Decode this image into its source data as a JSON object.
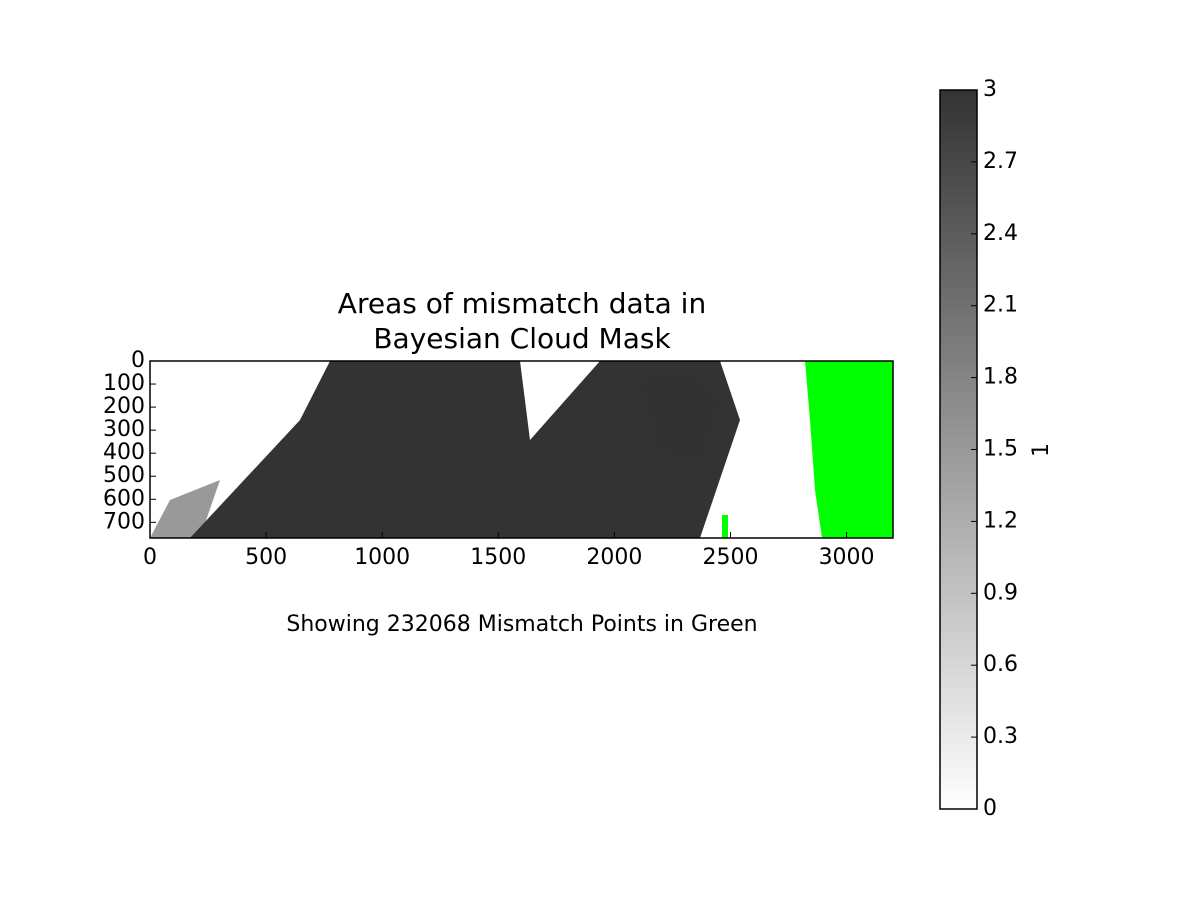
{
  "chart_data": {
    "type": "image",
    "title": [
      "Areas of mismatch data in",
      "Bayesian Cloud Mask"
    ],
    "annotation": "Showing 232068 Mismatch Points in Green",
    "xlim": [
      0,
      3200
    ],
    "xticks": [
      0,
      500,
      1000,
      1500,
      2000,
      2500,
      3000
    ],
    "ylim": [
      768,
      0
    ],
    "yticks": [
      0,
      100,
      200,
      300,
      400,
      500,
      600,
      700
    ],
    "colormap": [
      "#ffffff",
      "#333333"
    ],
    "mismatch_color": "#00ff00",
    "colorbar": {
      "label": "1",
      "clim": [
        0,
        3
      ],
      "ticks": [
        0,
        0.3,
        0.6,
        0.9,
        1.2,
        1.5,
        1.8,
        2.1,
        2.4,
        2.7,
        3
      ]
    }
  }
}
